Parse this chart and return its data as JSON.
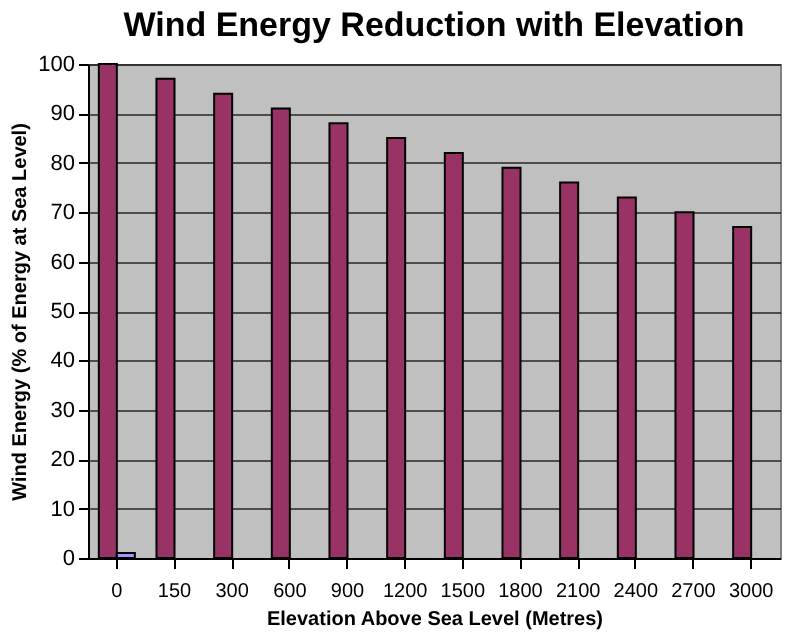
{
  "chart_data": {
    "type": "bar",
    "title": "Wind Energy Reduction with Elevation",
    "xlabel": "Elevation Above Sea Level (Metres)",
    "ylabel": "Wind Energy (% of Energy at Sea Level)",
    "categories": [
      "0",
      "150",
      "300",
      "600",
      "900",
      "1200",
      "1500",
      "1800",
      "2100",
      "2400",
      "2700",
      "3000"
    ],
    "series": [
      {
        "color": "#993366",
        "values": [
          100,
          97,
          94,
          91,
          88,
          85,
          82,
          79,
          76,
          73,
          70,
          67
        ]
      },
      {
        "color": "#9999ff",
        "values": [
          1,
          null,
          null,
          null,
          null,
          null,
          null,
          null,
          null,
          null,
          null,
          null
        ]
      }
    ],
    "ylim": [
      0,
      100
    ],
    "yticks": [
      0,
      10,
      20,
      30,
      40,
      50,
      60,
      70,
      80,
      90,
      100
    ],
    "grid": "y",
    "legend": false
  }
}
